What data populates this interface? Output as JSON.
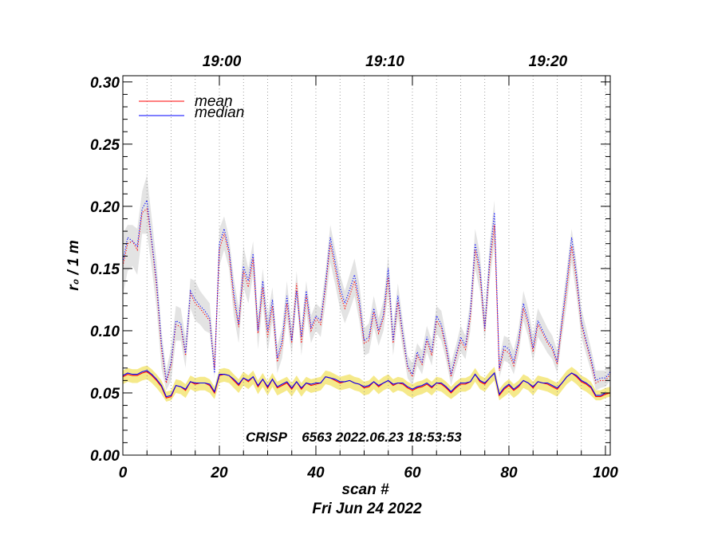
{
  "chart_data": {
    "type": "line",
    "xlabel": "scan #",
    "date": "Fri Jun 24 2022",
    "ylabel": "r₀ / 1 m",
    "annotation": "CRISP    6563 2022.06.23 18:53:53",
    "xlim": [
      0,
      101
    ],
    "ylim": [
      0,
      0.305
    ],
    "x_ticks": [
      0,
      20,
      40,
      60,
      80,
      100
    ],
    "x_tick_labels": [
      "0",
      "20",
      "40",
      "60",
      "80",
      "100"
    ],
    "y_ticks": [
      0.0,
      0.05,
      0.1,
      0.15,
      0.2,
      0.25,
      0.3
    ],
    "y_tick_labels": [
      "0.00",
      "0.05",
      "0.10",
      "0.15",
      "0.20",
      "0.25",
      "0.30"
    ],
    "top_axis": {
      "ticks": [
        {
          "x": 20.5,
          "label": "19:00"
        },
        {
          "x": 54.3,
          "label": "19:10"
        },
        {
          "x": 88.1,
          "label": "19:20"
        }
      ]
    },
    "vertical_gridlines_x": [
      5,
      10,
      15,
      20,
      25,
      30,
      35,
      40,
      45,
      50,
      55,
      60,
      65,
      70,
      75,
      80,
      85,
      90,
      95,
      100
    ],
    "grid": "vertical dotted",
    "legend": {
      "position": "top-left",
      "entries": [
        {
          "name": "mean",
          "color": "#ff0000"
        },
        {
          "name": "median",
          "color": "#0000ff"
        }
      ]
    },
    "colors": {
      "mean": "#ff0000",
      "median": "#0000ff",
      "band_upper": "#e3e3e3",
      "band_lower": "#f5e98a"
    },
    "x": [
      0,
      1,
      2,
      3,
      4,
      5,
      6,
      7,
      8,
      9,
      10,
      11,
      12,
      13,
      14,
      15,
      16,
      17,
      18,
      19,
      20,
      21,
      22,
      23,
      24,
      25,
      26,
      27,
      28,
      29,
      30,
      31,
      32,
      33,
      34,
      35,
      36,
      37,
      38,
      39,
      40,
      41,
      42,
      43,
      44,
      45,
      46,
      47,
      48,
      49,
      50,
      51,
      52,
      53,
      54,
      55,
      56,
      57,
      58,
      59,
      60,
      61,
      62,
      63,
      64,
      65,
      66,
      67,
      68,
      69,
      70,
      71,
      72,
      73,
      74,
      75,
      76,
      77,
      78,
      79,
      80,
      81,
      82,
      83,
      84,
      85,
      86,
      87,
      88,
      89,
      90,
      91,
      92,
      93,
      94,
      95,
      96,
      97,
      98,
      99,
      100,
      101
    ],
    "series": [
      {
        "name": "mean",
        "role": "upper-mean",
        "style": "dotted",
        "values": [
          0.152,
          0.17,
          0.172,
          0.165,
          0.195,
          0.198,
          0.17,
          0.135,
          0.085,
          0.058,
          0.072,
          0.105,
          0.103,
          0.08,
          0.13,
          0.122,
          0.118,
          0.113,
          0.108,
          0.07,
          0.165,
          0.178,
          0.162,
          0.125,
          0.103,
          0.148,
          0.135,
          0.158,
          0.098,
          0.135,
          0.095,
          0.12,
          0.075,
          0.088,
          0.122,
          0.09,
          0.138,
          0.09,
          0.128,
          0.1,
          0.11,
          0.105,
          0.135,
          0.17,
          0.15,
          0.13,
          0.118,
          0.128,
          0.14,
          0.12,
          0.09,
          0.092,
          0.115,
          0.098,
          0.11,
          0.143,
          0.09,
          0.123,
          0.095,
          0.07,
          0.063,
          0.08,
          0.073,
          0.092,
          0.08,
          0.108,
          0.102,
          0.085,
          0.063,
          0.078,
          0.092,
          0.085,
          0.11,
          0.165,
          0.145,
          0.1,
          0.152,
          0.185,
          0.068,
          0.085,
          0.082,
          0.072,
          0.09,
          0.118,
          0.105,
          0.083,
          0.105,
          0.098,
          0.09,
          0.085,
          0.073,
          0.105,
          0.135,
          0.168,
          0.14,
          0.105,
          0.09,
          0.075,
          0.058,
          0.06,
          0.06,
          0.065
        ]
      },
      {
        "name": "median",
        "role": "upper-median",
        "style": "dotted",
        "values": [
          0.155,
          0.175,
          0.172,
          0.168,
          0.198,
          0.205,
          0.172,
          0.14,
          0.09,
          0.06,
          0.075,
          0.108,
          0.106,
          0.082,
          0.132,
          0.125,
          0.12,
          0.116,
          0.11,
          0.066,
          0.17,
          0.182,
          0.165,
          0.13,
          0.105,
          0.152,
          0.14,
          0.162,
          0.1,
          0.14,
          0.1,
          0.125,
          0.078,
          0.092,
          0.128,
          0.092,
          0.132,
          0.095,
          0.132,
          0.103,
          0.112,
          0.108,
          0.138,
          0.175,
          0.155,
          0.135,
          0.122,
          0.133,
          0.145,
          0.125,
          0.092,
          0.095,
          0.118,
          0.1,
          0.113,
          0.15,
          0.092,
          0.128,
          0.098,
          0.072,
          0.065,
          0.083,
          0.075,
          0.095,
          0.083,
          0.112,
          0.105,
          0.088,
          0.065,
          0.08,
          0.095,
          0.088,
          0.115,
          0.17,
          0.15,
          0.102,
          0.158,
          0.195,
          0.07,
          0.088,
          0.085,
          0.075,
          0.092,
          0.122,
          0.108,
          0.086,
          0.108,
          0.1,
          0.092,
          0.087,
          0.075,
          0.108,
          0.14,
          0.175,
          0.145,
          0.108,
          0.092,
          0.078,
          0.06,
          0.062,
          0.062,
          0.067
        ]
      },
      {
        "name": "mean",
        "role": "lower-mean",
        "style": "solid",
        "values": [
          0.063,
          0.065,
          0.064,
          0.064,
          0.066,
          0.067,
          0.064,
          0.06,
          0.055,
          0.046,
          0.047,
          0.056,
          0.055,
          0.052,
          0.059,
          0.057,
          0.058,
          0.058,
          0.056,
          0.05,
          0.064,
          0.065,
          0.064,
          0.06,
          0.056,
          0.062,
          0.059,
          0.063,
          0.055,
          0.061,
          0.054,
          0.061,
          0.054,
          0.056,
          0.058,
          0.053,
          0.059,
          0.053,
          0.058,
          0.056,
          0.057,
          0.058,
          0.063,
          0.062,
          0.06,
          0.058,
          0.059,
          0.06,
          0.058,
          0.057,
          0.054,
          0.055,
          0.059,
          0.055,
          0.058,
          0.06,
          0.056,
          0.058,
          0.057,
          0.054,
          0.052,
          0.054,
          0.055,
          0.057,
          0.054,
          0.058,
          0.057,
          0.054,
          0.05,
          0.054,
          0.057,
          0.057,
          0.059,
          0.065,
          0.059,
          0.057,
          0.062,
          0.066,
          0.048,
          0.053,
          0.056,
          0.052,
          0.055,
          0.06,
          0.058,
          0.054,
          0.059,
          0.058,
          0.057,
          0.055,
          0.053,
          0.058,
          0.063,
          0.066,
          0.063,
          0.059,
          0.057,
          0.054,
          0.047,
          0.047,
          0.049,
          0.05
        ]
      },
      {
        "name": "median",
        "role": "lower-median",
        "style": "solid",
        "values": [
          0.064,
          0.066,
          0.065,
          0.065,
          0.067,
          0.068,
          0.065,
          0.061,
          0.056,
          0.047,
          0.048,
          0.056,
          0.055,
          0.053,
          0.059,
          0.058,
          0.058,
          0.058,
          0.057,
          0.051,
          0.065,
          0.065,
          0.064,
          0.061,
          0.057,
          0.062,
          0.06,
          0.063,
          0.056,
          0.061,
          0.055,
          0.061,
          0.055,
          0.057,
          0.059,
          0.054,
          0.059,
          0.054,
          0.058,
          0.057,
          0.058,
          0.058,
          0.063,
          0.062,
          0.061,
          0.059,
          0.059,
          0.06,
          0.058,
          0.057,
          0.055,
          0.056,
          0.059,
          0.056,
          0.058,
          0.06,
          0.057,
          0.058,
          0.058,
          0.055,
          0.053,
          0.055,
          0.056,
          0.058,
          0.055,
          0.058,
          0.058,
          0.055,
          0.051,
          0.055,
          0.058,
          0.058,
          0.059,
          0.065,
          0.06,
          0.058,
          0.062,
          0.066,
          0.049,
          0.054,
          0.057,
          0.053,
          0.056,
          0.06,
          0.058,
          0.055,
          0.059,
          0.058,
          0.058,
          0.056,
          0.054,
          0.058,
          0.063,
          0.066,
          0.064,
          0.06,
          0.058,
          0.055,
          0.048,
          0.048,
          0.05,
          0.05
        ]
      }
    ],
    "band_upper": {
      "low": [
        0.128,
        0.148,
        0.152,
        0.145,
        0.178,
        0.178,
        0.15,
        0.118,
        0.07,
        0.052,
        0.06,
        0.092,
        0.092,
        0.07,
        0.118,
        0.108,
        0.105,
        0.1,
        0.098,
        0.062,
        0.152,
        0.165,
        0.15,
        0.112,
        0.09,
        0.135,
        0.122,
        0.145,
        0.085,
        0.122,
        0.083,
        0.108,
        0.066,
        0.078,
        0.11,
        0.08,
        0.125,
        0.08,
        0.115,
        0.09,
        0.1,
        0.095,
        0.122,
        0.155,
        0.137,
        0.118,
        0.106,
        0.116,
        0.128,
        0.108,
        0.08,
        0.082,
        0.103,
        0.088,
        0.1,
        0.13,
        0.08,
        0.111,
        0.085,
        0.062,
        0.056,
        0.072,
        0.065,
        0.083,
        0.072,
        0.098,
        0.092,
        0.076,
        0.056,
        0.07,
        0.083,
        0.077,
        0.1,
        0.15,
        0.132,
        0.09,
        0.14,
        0.17,
        0.062,
        0.076,
        0.074,
        0.065,
        0.081,
        0.108,
        0.095,
        0.075,
        0.095,
        0.089,
        0.082,
        0.077,
        0.066,
        0.095,
        0.122,
        0.155,
        0.128,
        0.095,
        0.081,
        0.068,
        0.052,
        0.054,
        0.055,
        0.06
      ],
      "high": [
        0.178,
        0.185,
        0.185,
        0.182,
        0.212,
        0.225,
        0.19,
        0.155,
        0.1,
        0.068,
        0.086,
        0.12,
        0.118,
        0.094,
        0.142,
        0.14,
        0.132,
        0.127,
        0.122,
        0.08,
        0.182,
        0.192,
        0.175,
        0.142,
        0.118,
        0.168,
        0.15,
        0.172,
        0.112,
        0.15,
        0.112,
        0.135,
        0.088,
        0.102,
        0.14,
        0.102,
        0.148,
        0.104,
        0.14,
        0.112,
        0.122,
        0.118,
        0.148,
        0.185,
        0.165,
        0.145,
        0.132,
        0.145,
        0.158,
        0.138,
        0.102,
        0.106,
        0.128,
        0.11,
        0.124,
        0.16,
        0.104,
        0.138,
        0.108,
        0.08,
        0.074,
        0.09,
        0.084,
        0.104,
        0.092,
        0.12,
        0.116,
        0.096,
        0.074,
        0.088,
        0.104,
        0.096,
        0.125,
        0.182,
        0.162,
        0.112,
        0.17,
        0.205,
        0.078,
        0.096,
        0.094,
        0.084,
        0.102,
        0.132,
        0.118,
        0.096,
        0.118,
        0.11,
        0.102,
        0.096,
        0.084,
        0.118,
        0.15,
        0.182,
        0.155,
        0.118,
        0.102,
        0.086,
        0.068,
        0.068,
        0.068,
        0.073
      ]
    },
    "band_lower": {
      "low": [
        0.057,
        0.059,
        0.058,
        0.058,
        0.06,
        0.061,
        0.058,
        0.054,
        0.049,
        0.043,
        0.044,
        0.05,
        0.049,
        0.046,
        0.053,
        0.051,
        0.052,
        0.052,
        0.05,
        0.045,
        0.058,
        0.059,
        0.058,
        0.054,
        0.05,
        0.056,
        0.053,
        0.057,
        0.049,
        0.055,
        0.048,
        0.055,
        0.048,
        0.05,
        0.052,
        0.047,
        0.053,
        0.047,
        0.052,
        0.05,
        0.051,
        0.052,
        0.057,
        0.056,
        0.054,
        0.052,
        0.053,
        0.054,
        0.052,
        0.051,
        0.048,
        0.049,
        0.053,
        0.049,
        0.052,
        0.054,
        0.05,
        0.052,
        0.051,
        0.048,
        0.046,
        0.048,
        0.049,
        0.051,
        0.048,
        0.052,
        0.051,
        0.048,
        0.045,
        0.048,
        0.051,
        0.051,
        0.053,
        0.059,
        0.053,
        0.051,
        0.056,
        0.06,
        0.044,
        0.047,
        0.05,
        0.046,
        0.049,
        0.054,
        0.052,
        0.048,
        0.053,
        0.052,
        0.051,
        0.049,
        0.047,
        0.052,
        0.057,
        0.06,
        0.057,
        0.053,
        0.051,
        0.048,
        0.044,
        0.044,
        0.046,
        0.047
      ],
      "high": [
        0.068,
        0.07,
        0.069,
        0.069,
        0.071,
        0.072,
        0.069,
        0.065,
        0.06,
        0.051,
        0.052,
        0.061,
        0.06,
        0.057,
        0.064,
        0.062,
        0.063,
        0.063,
        0.061,
        0.055,
        0.069,
        0.07,
        0.069,
        0.065,
        0.061,
        0.067,
        0.064,
        0.068,
        0.06,
        0.066,
        0.059,
        0.066,
        0.059,
        0.061,
        0.063,
        0.058,
        0.064,
        0.058,
        0.063,
        0.061,
        0.062,
        0.063,
        0.068,
        0.067,
        0.065,
        0.063,
        0.064,
        0.065,
        0.063,
        0.062,
        0.059,
        0.06,
        0.064,
        0.06,
        0.063,
        0.065,
        0.061,
        0.063,
        0.062,
        0.059,
        0.057,
        0.059,
        0.06,
        0.062,
        0.059,
        0.063,
        0.062,
        0.059,
        0.055,
        0.059,
        0.062,
        0.062,
        0.064,
        0.07,
        0.064,
        0.062,
        0.067,
        0.071,
        0.053,
        0.058,
        0.061,
        0.057,
        0.06,
        0.065,
        0.063,
        0.059,
        0.064,
        0.063,
        0.062,
        0.06,
        0.058,
        0.063,
        0.068,
        0.071,
        0.068,
        0.064,
        0.062,
        0.059,
        0.052,
        0.052,
        0.054,
        0.055
      ]
    }
  }
}
